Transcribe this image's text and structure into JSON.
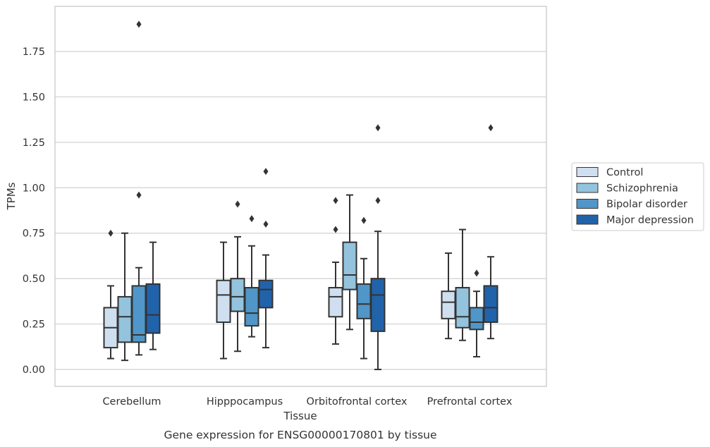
{
  "chart_data": {
    "type": "box",
    "title": "",
    "caption": "Gene expression for ENSG00000170801 by tissue",
    "xlabel": "Tissue",
    "ylabel": "TPMs",
    "ylim": [
      -0.09,
      1.99
    ],
    "yticks": [
      "0.00",
      "0.25",
      "0.50",
      "0.75",
      "1.00",
      "1.25",
      "1.50",
      "1.75"
    ],
    "grid": "horizontal",
    "legend_position": "right",
    "categories": [
      "Cerebellum",
      "Hipppocampus",
      "Orbitofrontal cortex",
      "Prefrontal cortex"
    ],
    "series": [
      {
        "name": "Control",
        "color": "#d0dff0",
        "boxes": [
          {
            "min": 0.06,
            "q1": 0.12,
            "median": 0.23,
            "q3": 0.34,
            "max": 0.46,
            "outliers": [
              0.75
            ]
          },
          {
            "min": 0.06,
            "q1": 0.26,
            "median": 0.41,
            "q3": 0.49,
            "max": 0.7,
            "outliers": []
          },
          {
            "min": 0.14,
            "q1": 0.29,
            "median": 0.4,
            "q3": 0.45,
            "max": 0.59,
            "outliers": [
              0.77,
              0.93
            ]
          },
          {
            "min": 0.17,
            "q1": 0.28,
            "median": 0.37,
            "q3": 0.43,
            "max": 0.64,
            "outliers": []
          }
        ]
      },
      {
        "name": "Schizophrenia",
        "color": "#94c3dd",
        "boxes": [
          {
            "min": 0.05,
            "q1": 0.15,
            "median": 0.29,
            "q3": 0.4,
            "max": 0.75,
            "outliers": []
          },
          {
            "min": 0.1,
            "q1": 0.32,
            "median": 0.4,
            "q3": 0.5,
            "max": 0.73,
            "outliers": [
              0.91
            ]
          },
          {
            "min": 0.22,
            "q1": 0.44,
            "median": 0.52,
            "q3": 0.7,
            "max": 0.96,
            "outliers": []
          },
          {
            "min": 0.16,
            "q1": 0.23,
            "median": 0.29,
            "q3": 0.45,
            "max": 0.77,
            "outliers": []
          }
        ]
      },
      {
        "name": "Bipolar disorder",
        "color": "#5096c8",
        "boxes": [
          {
            "min": 0.08,
            "q1": 0.15,
            "median": 0.19,
            "q3": 0.46,
            "max": 0.56,
            "outliers": [
              0.96,
              1.9
            ]
          },
          {
            "min": 0.18,
            "q1": 0.24,
            "median": 0.31,
            "q3": 0.45,
            "max": 0.68,
            "outliers": [
              0.83
            ]
          },
          {
            "min": 0.06,
            "q1": 0.28,
            "median": 0.36,
            "q3": 0.47,
            "max": 0.61,
            "outliers": [
              0.82
            ]
          },
          {
            "min": 0.07,
            "q1": 0.22,
            "median": 0.26,
            "q3": 0.34,
            "max": 0.43,
            "outliers": [
              0.53
            ]
          }
        ]
      },
      {
        "name": "Major depression",
        "color": "#2163aa",
        "boxes": [
          {
            "min": 0.11,
            "q1": 0.2,
            "median": 0.3,
            "q3": 0.47,
            "max": 0.7,
            "outliers": []
          },
          {
            "min": 0.12,
            "q1": 0.34,
            "median": 0.44,
            "q3": 0.49,
            "max": 0.63,
            "outliers": [
              0.8,
              1.09
            ]
          },
          {
            "min": 0.0,
            "q1": 0.21,
            "median": 0.41,
            "q3": 0.5,
            "max": 0.76,
            "outliers": [
              0.93,
              1.33
            ]
          },
          {
            "min": 0.17,
            "q1": 0.26,
            "median": 0.34,
            "q3": 0.46,
            "max": 0.62,
            "outliers": [
              1.33
            ]
          }
        ]
      }
    ],
    "colors": {
      "grid": "#d0d0d0",
      "frame": "#cccccc",
      "lines": "#333333"
    }
  }
}
